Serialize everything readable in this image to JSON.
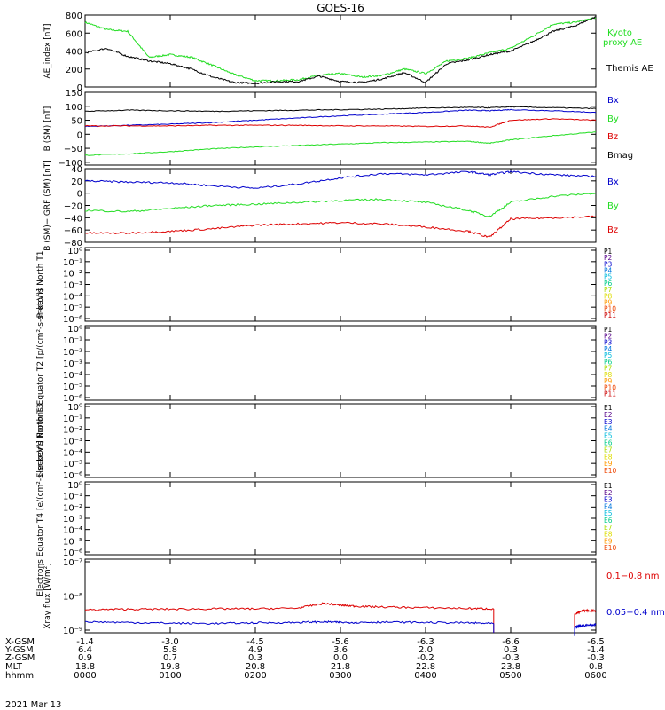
{
  "title": "GOES-16",
  "date": "2021 Mar 13",
  "time_axis": {
    "row_labels": [
      "X-GSM",
      "Y-GSM",
      "Z-GSM",
      "MLT",
      "hhmm"
    ],
    "ticks": [
      {
        "x_gsm": "-1.4",
        "y_gsm": "6.4",
        "z_gsm": "0.9",
        "mlt": "18.8",
        "hhmm": "0000"
      },
      {
        "x_gsm": "-3.0",
        "y_gsm": "5.8",
        "z_gsm": "0.7",
        "mlt": "19.8",
        "hhmm": "0100"
      },
      {
        "x_gsm": "-4.5",
        "y_gsm": "4.9",
        "z_gsm": "0.3",
        "mlt": "20.8",
        "hhmm": "0200"
      },
      {
        "x_gsm": "-5.6",
        "y_gsm": "3.6",
        "z_gsm": "0.0",
        "mlt": "21.8",
        "hhmm": "0300"
      },
      {
        "x_gsm": "-6.3",
        "y_gsm": "2.0",
        "z_gsm": "-0.2",
        "mlt": "22.8",
        "hhmm": "0400"
      },
      {
        "x_gsm": "-6.6",
        "y_gsm": "0.3",
        "z_gsm": "-0.3",
        "mlt": "23.8",
        "hhmm": "0500"
      },
      {
        "x_gsm": "-6.5",
        "y_gsm": "-1.4",
        "z_gsm": "-0.3",
        "mlt": "0.8",
        "hhmm": "0600"
      }
    ]
  },
  "legend_colors": {
    "black": "#000000",
    "green": "#22dd22",
    "blue": "#0000cc",
    "red": "#dd0000",
    "p_colors": [
      "#000000",
      "#550088",
      "#0000cc",
      "#0077dd",
      "#00bbdd",
      "#00cc88",
      "#aadd00",
      "#dddd00",
      "#ff9900",
      "#ee4400",
      "#cc0000"
    ]
  },
  "chart_data": [
    {
      "type": "line",
      "ylabel": "AE_index [nT]",
      "ylim": [
        0,
        800
      ],
      "yticks": [
        "0",
        "200",
        "400",
        "600",
        "800"
      ],
      "x": [
        0,
        0.25,
        0.5,
        0.75,
        1.0,
        1.25,
        1.5,
        1.75,
        2.0,
        2.25,
        2.5,
        2.75,
        3.0,
        3.25,
        3.5,
        3.75,
        4.0,
        4.25,
        4.5,
        4.75,
        5.0,
        5.25,
        5.5,
        5.75,
        6.0
      ],
      "series": [
        {
          "name": "Kyoto proxy AE",
          "color": "#22dd22",
          "values": [
            720,
            640,
            620,
            330,
            360,
            330,
            240,
            140,
            70,
            70,
            80,
            130,
            150,
            110,
            130,
            200,
            150,
            290,
            320,
            380,
            430,
            560,
            700,
            720,
            770
          ]
        },
        {
          "name": "Themis AE",
          "color": "#000000",
          "values": [
            380,
            430,
            340,
            290,
            260,
            200,
            110,
            50,
            40,
            60,
            60,
            120,
            60,
            50,
            90,
            160,
            50,
            260,
            300,
            360,
            400,
            500,
            620,
            680,
            780
          ]
        }
      ]
    },
    {
      "type": "line",
      "ylabel": "B (SM) [nT]",
      "ylim": [
        -110,
        150
      ],
      "yticks": [
        "−100",
        "−50",
        "0",
        "50",
        "100",
        "150"
      ],
      "x": [
        0,
        0.5,
        1.0,
        1.5,
        2.0,
        2.5,
        3.0,
        3.5,
        4.0,
        4.5,
        4.75,
        5.0,
        5.5,
        6.0
      ],
      "series": [
        {
          "name": "Bx",
          "color": "#0000cc",
          "values": [
            28,
            32,
            36,
            42,
            50,
            58,
            66,
            72,
            78,
            86,
            84,
            88,
            84,
            78
          ]
        },
        {
          "name": "By",
          "color": "#22dd22",
          "values": [
            -75,
            -70,
            -62,
            -52,
            -45,
            -40,
            -35,
            -30,
            -28,
            -25,
            -32,
            -20,
            -5,
            8
          ]
        },
        {
          "name": "Bz",
          "color": "#dd0000",
          "values": [
            30,
            30,
            30,
            32,
            32,
            32,
            30,
            30,
            28,
            30,
            25,
            50,
            55,
            50
          ]
        },
        {
          "name": "Bmag",
          "color": "#000000",
          "values": [
            82,
            86,
            84,
            82,
            84,
            86,
            88,
            90,
            94,
            96,
            95,
            98,
            95,
            92
          ]
        }
      ]
    },
    {
      "type": "line",
      "ylabel": "B (SM)−IGRF (SM) [nT]",
      "ylim": [
        -80,
        40
      ],
      "yticks": [
        "−80",
        "−60",
        "−40",
        "−20",
        "0",
        "20",
        "40"
      ],
      "x": [
        0,
        0.5,
        1.0,
        1.5,
        2.0,
        2.5,
        3.0,
        3.5,
        4.0,
        4.5,
        4.75,
        5.0,
        5.5,
        6.0
      ],
      "series": [
        {
          "name": "Bx",
          "color": "#0000cc",
          "values": [
            20,
            18,
            17,
            12,
            8,
            15,
            25,
            32,
            30,
            35,
            30,
            35,
            30,
            27
          ]
        },
        {
          "name": "By",
          "color": "#22dd22",
          "values": [
            -28,
            -30,
            -25,
            -20,
            -18,
            -15,
            -12,
            -10,
            -15,
            -28,
            -38,
            -15,
            -5,
            0
          ]
        },
        {
          "name": "Bz",
          "color": "#dd0000",
          "values": [
            -65,
            -65,
            -62,
            -58,
            -52,
            -50,
            -48,
            -50,
            -55,
            -62,
            -72,
            -42,
            -40,
            -38
          ]
        }
      ]
    },
    {
      "type": "line",
      "ylabel": "Protons North T1",
      "scale": "log",
      "yticks": [
        "10⁰",
        "10⁻¹",
        "10⁻²",
        "10⁻³",
        "10⁻⁴",
        "10⁻⁵",
        "10⁻⁶"
      ],
      "legend": [
        "P1",
        "P2",
        "P3",
        "P4",
        "P5",
        "P6",
        "P7",
        "P8",
        "P9",
        "P10",
        "P11"
      ]
    },
    {
      "type": "line",
      "ylabel": "Protons Equator T2 [p/(cm²-s-sr-keV)]",
      "scale": "log",
      "yticks": [
        "10⁰",
        "10⁻¹",
        "10⁻²",
        "10⁻³",
        "10⁻⁴",
        "10⁻⁵",
        "10⁻⁶"
      ],
      "legend": [
        "P1",
        "P2",
        "P3",
        "P4",
        "P5",
        "P6",
        "P7",
        "P8",
        "P9",
        "P10",
        "P11"
      ]
    },
    {
      "type": "line",
      "ylabel": "Electrons North T3",
      "scale": "log",
      "yticks": [
        "10⁰",
        "10⁻¹",
        "10⁻²",
        "10⁻³",
        "10⁻⁴",
        "10⁻⁵",
        "10⁻⁶"
      ],
      "legend": [
        "E1",
        "E2",
        "E3",
        "E4",
        "E5",
        "E6",
        "E7",
        "E8",
        "E9",
        "E10"
      ]
    },
    {
      "type": "line",
      "ylabel": "Electrons Equator T4 [e/(cm²-s-sr-keV)]",
      "scale": "log",
      "yticks": [
        "10⁰",
        "10⁻¹",
        "10⁻²",
        "10⁻³",
        "10⁻⁴",
        "10⁻⁵",
        "10⁻⁶"
      ],
      "legend": [
        "E1",
        "E2",
        "E3",
        "E4",
        "E5",
        "E6",
        "E7",
        "E8",
        "E9",
        "E10"
      ]
    },
    {
      "type": "line",
      "ylabel": "Xray flux [W/m²]",
      "scale": "log",
      "ylim": [
        -9,
        -7
      ],
      "yticks": [
        "10⁻⁷",
        "10⁻⁸",
        "10⁻⁹"
      ],
      "x": [
        0,
        0.5,
        1.0,
        1.5,
        2.0,
        2.5,
        2.8,
        3.0,
        3.2,
        3.5,
        4.0,
        4.5,
        4.8
      ],
      "x2": [
        5.75,
        5.85,
        6.0
      ],
      "series": [
        {
          "name": "0.1−0.8 nm",
          "color": "#dd0000",
          "values": [
            -8.38,
            -8.36,
            -8.36,
            -8.35,
            -8.35,
            -8.33,
            -8.2,
            -8.25,
            -8.28,
            -8.3,
            -8.32,
            -8.34,
            -8.35
          ],
          "values2": [
            -8.5,
            -8.4,
            -8.4
          ]
        },
        {
          "name": "0.05−0.4 nm",
          "color": "#0000cc",
          "values": [
            -8.7,
            -8.72,
            -8.74,
            -8.75,
            -8.73,
            -8.72,
            -8.7,
            -8.72,
            -8.72,
            -8.71,
            -8.72,
            -8.73,
            -8.75
          ],
          "values2": [
            -8.85,
            -8.8,
            -8.78
          ]
        }
      ]
    }
  ]
}
